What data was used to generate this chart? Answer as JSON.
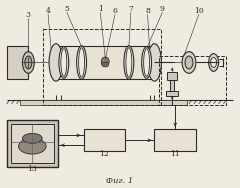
{
  "bg_color": "#f0ebe0",
  "line_color": "#2a2a2a",
  "title": "Фиг. 1",
  "figsize": [
    2.4,
    1.88
  ],
  "dpi": 100
}
